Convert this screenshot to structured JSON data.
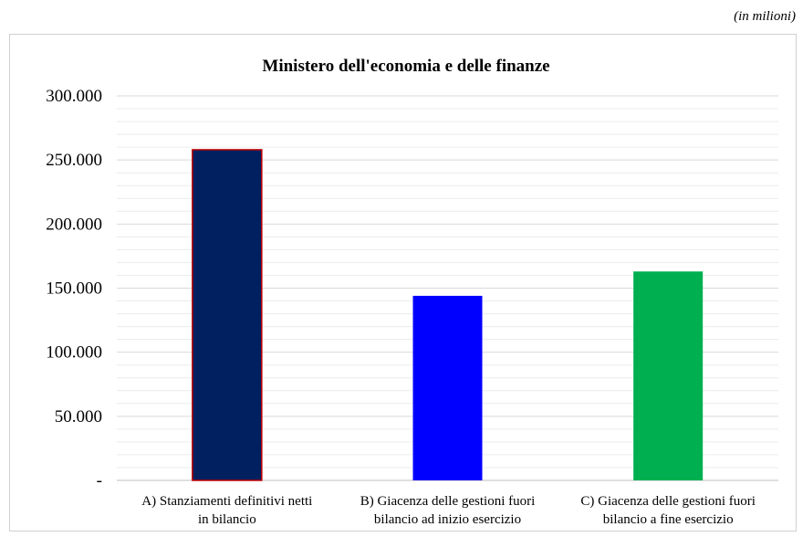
{
  "unit_note": "(in milioni)",
  "chart_data": {
    "type": "bar",
    "title": "Ministero dell'economia e delle finanze",
    "xlabel": "",
    "ylabel": "",
    "ylim": [
      0,
      300000
    ],
    "yticks": [
      0,
      50000,
      100000,
      150000,
      200000,
      250000,
      300000
    ],
    "ytick_labels": [
      "-",
      "50.000",
      "100.000",
      "150.000",
      "200.000",
      "250.000",
      "300.000"
    ],
    "grid": true,
    "legend": "none",
    "categories": [
      [
        "A) Stanziamenti definitivi netti",
        "in bilancio"
      ],
      [
        "B) Giacenza delle gestioni fuori",
        "bilancio ad inizio esercizio"
      ],
      [
        "C) Giacenza delle gestioni fuori",
        "bilancio a fine esercizio"
      ]
    ],
    "values": [
      258000,
      144000,
      163000
    ],
    "colors": [
      "#002060",
      "#0000ff",
      "#00b050"
    ],
    "outline_colors": [
      "#c00000",
      null,
      null
    ]
  }
}
